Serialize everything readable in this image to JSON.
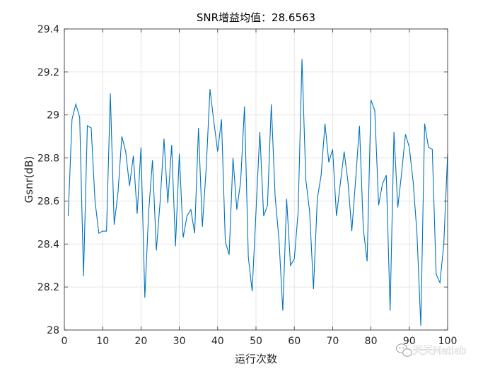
{
  "chart_data": {
    "type": "line",
    "title": "SNR增益均值：28.6563",
    "xlabel": "运行次数",
    "ylabel": "Gsnr(dB)",
    "xlim": [
      0,
      100
    ],
    "ylim": [
      28,
      29.4
    ],
    "xticks": [
      0,
      10,
      20,
      30,
      40,
      50,
      60,
      70,
      80,
      90,
      100
    ],
    "yticks": [
      28,
      28.2,
      28.4,
      28.6,
      28.8,
      29,
      29.2,
      29.4
    ],
    "xtick_labels": [
      "0",
      "10",
      "20",
      "30",
      "40",
      "50",
      "60",
      "70",
      "80",
      "90",
      "100"
    ],
    "ytick_labels": [
      "28",
      "28.2",
      "28.4",
      "28.6",
      "28.8",
      "29",
      "29.2",
      "29.4"
    ],
    "grid": true,
    "line_color": "#0072BD",
    "series": [
      {
        "x": [
          1,
          2,
          3,
          4,
          5,
          6,
          7,
          8,
          9,
          10,
          11,
          12,
          13,
          14,
          15,
          16,
          17,
          18,
          19,
          20,
          21,
          22,
          23,
          24,
          25,
          26,
          27,
          28,
          29,
          30,
          31,
          32,
          33,
          34,
          35,
          36,
          37,
          38,
          39,
          40,
          41,
          42,
          43,
          44,
          45,
          46,
          47,
          48,
          49,
          50,
          51,
          52,
          53,
          54,
          55,
          56,
          57,
          58,
          59,
          60,
          61,
          62,
          63,
          64,
          65,
          66,
          67,
          68,
          69,
          70,
          71,
          72,
          73,
          74,
          75,
          76,
          77,
          78,
          79,
          80,
          81,
          82,
          83,
          84,
          85,
          86,
          87,
          88,
          89,
          90,
          91,
          92,
          93,
          94,
          95,
          96,
          97,
          98,
          99,
          100
        ],
        "values": [
          28.53,
          28.98,
          29.05,
          28.99,
          28.25,
          28.95,
          28.94,
          28.6,
          28.45,
          28.46,
          28.46,
          29.1,
          28.49,
          28.64,
          28.9,
          28.83,
          28.67,
          28.81,
          28.54,
          28.85,
          28.15,
          28.55,
          28.79,
          28.37,
          28.6,
          28.89,
          28.59,
          28.86,
          28.39,
          28.82,
          28.43,
          28.53,
          28.56,
          28.45,
          28.94,
          28.48,
          28.75,
          29.12,
          28.97,
          28.83,
          28.98,
          28.41,
          28.35,
          28.8,
          28.56,
          28.69,
          29.04,
          28.34,
          28.18,
          28.55,
          28.92,
          28.53,
          28.58,
          29.05,
          28.62,
          28.42,
          28.09,
          28.61,
          28.3,
          28.33,
          28.55,
          29.26,
          28.7,
          28.55,
          28.19,
          28.61,
          28.72,
          28.96,
          28.78,
          28.84,
          28.53,
          28.68,
          28.83,
          28.69,
          28.46,
          28.7,
          28.95,
          28.47,
          28.32,
          29.07,
          29.02,
          28.58,
          28.68,
          28.72,
          28.09,
          28.92,
          28.57,
          28.73,
          28.91,
          28.85,
          28.69,
          28.45,
          28.02,
          28.96,
          28.85,
          28.84,
          28.26,
          28.22,
          28.4,
          28.82
        ]
      }
    ]
  },
  "watermark": {
    "icon": "wechat-icon",
    "text": "天天Matlab"
  }
}
